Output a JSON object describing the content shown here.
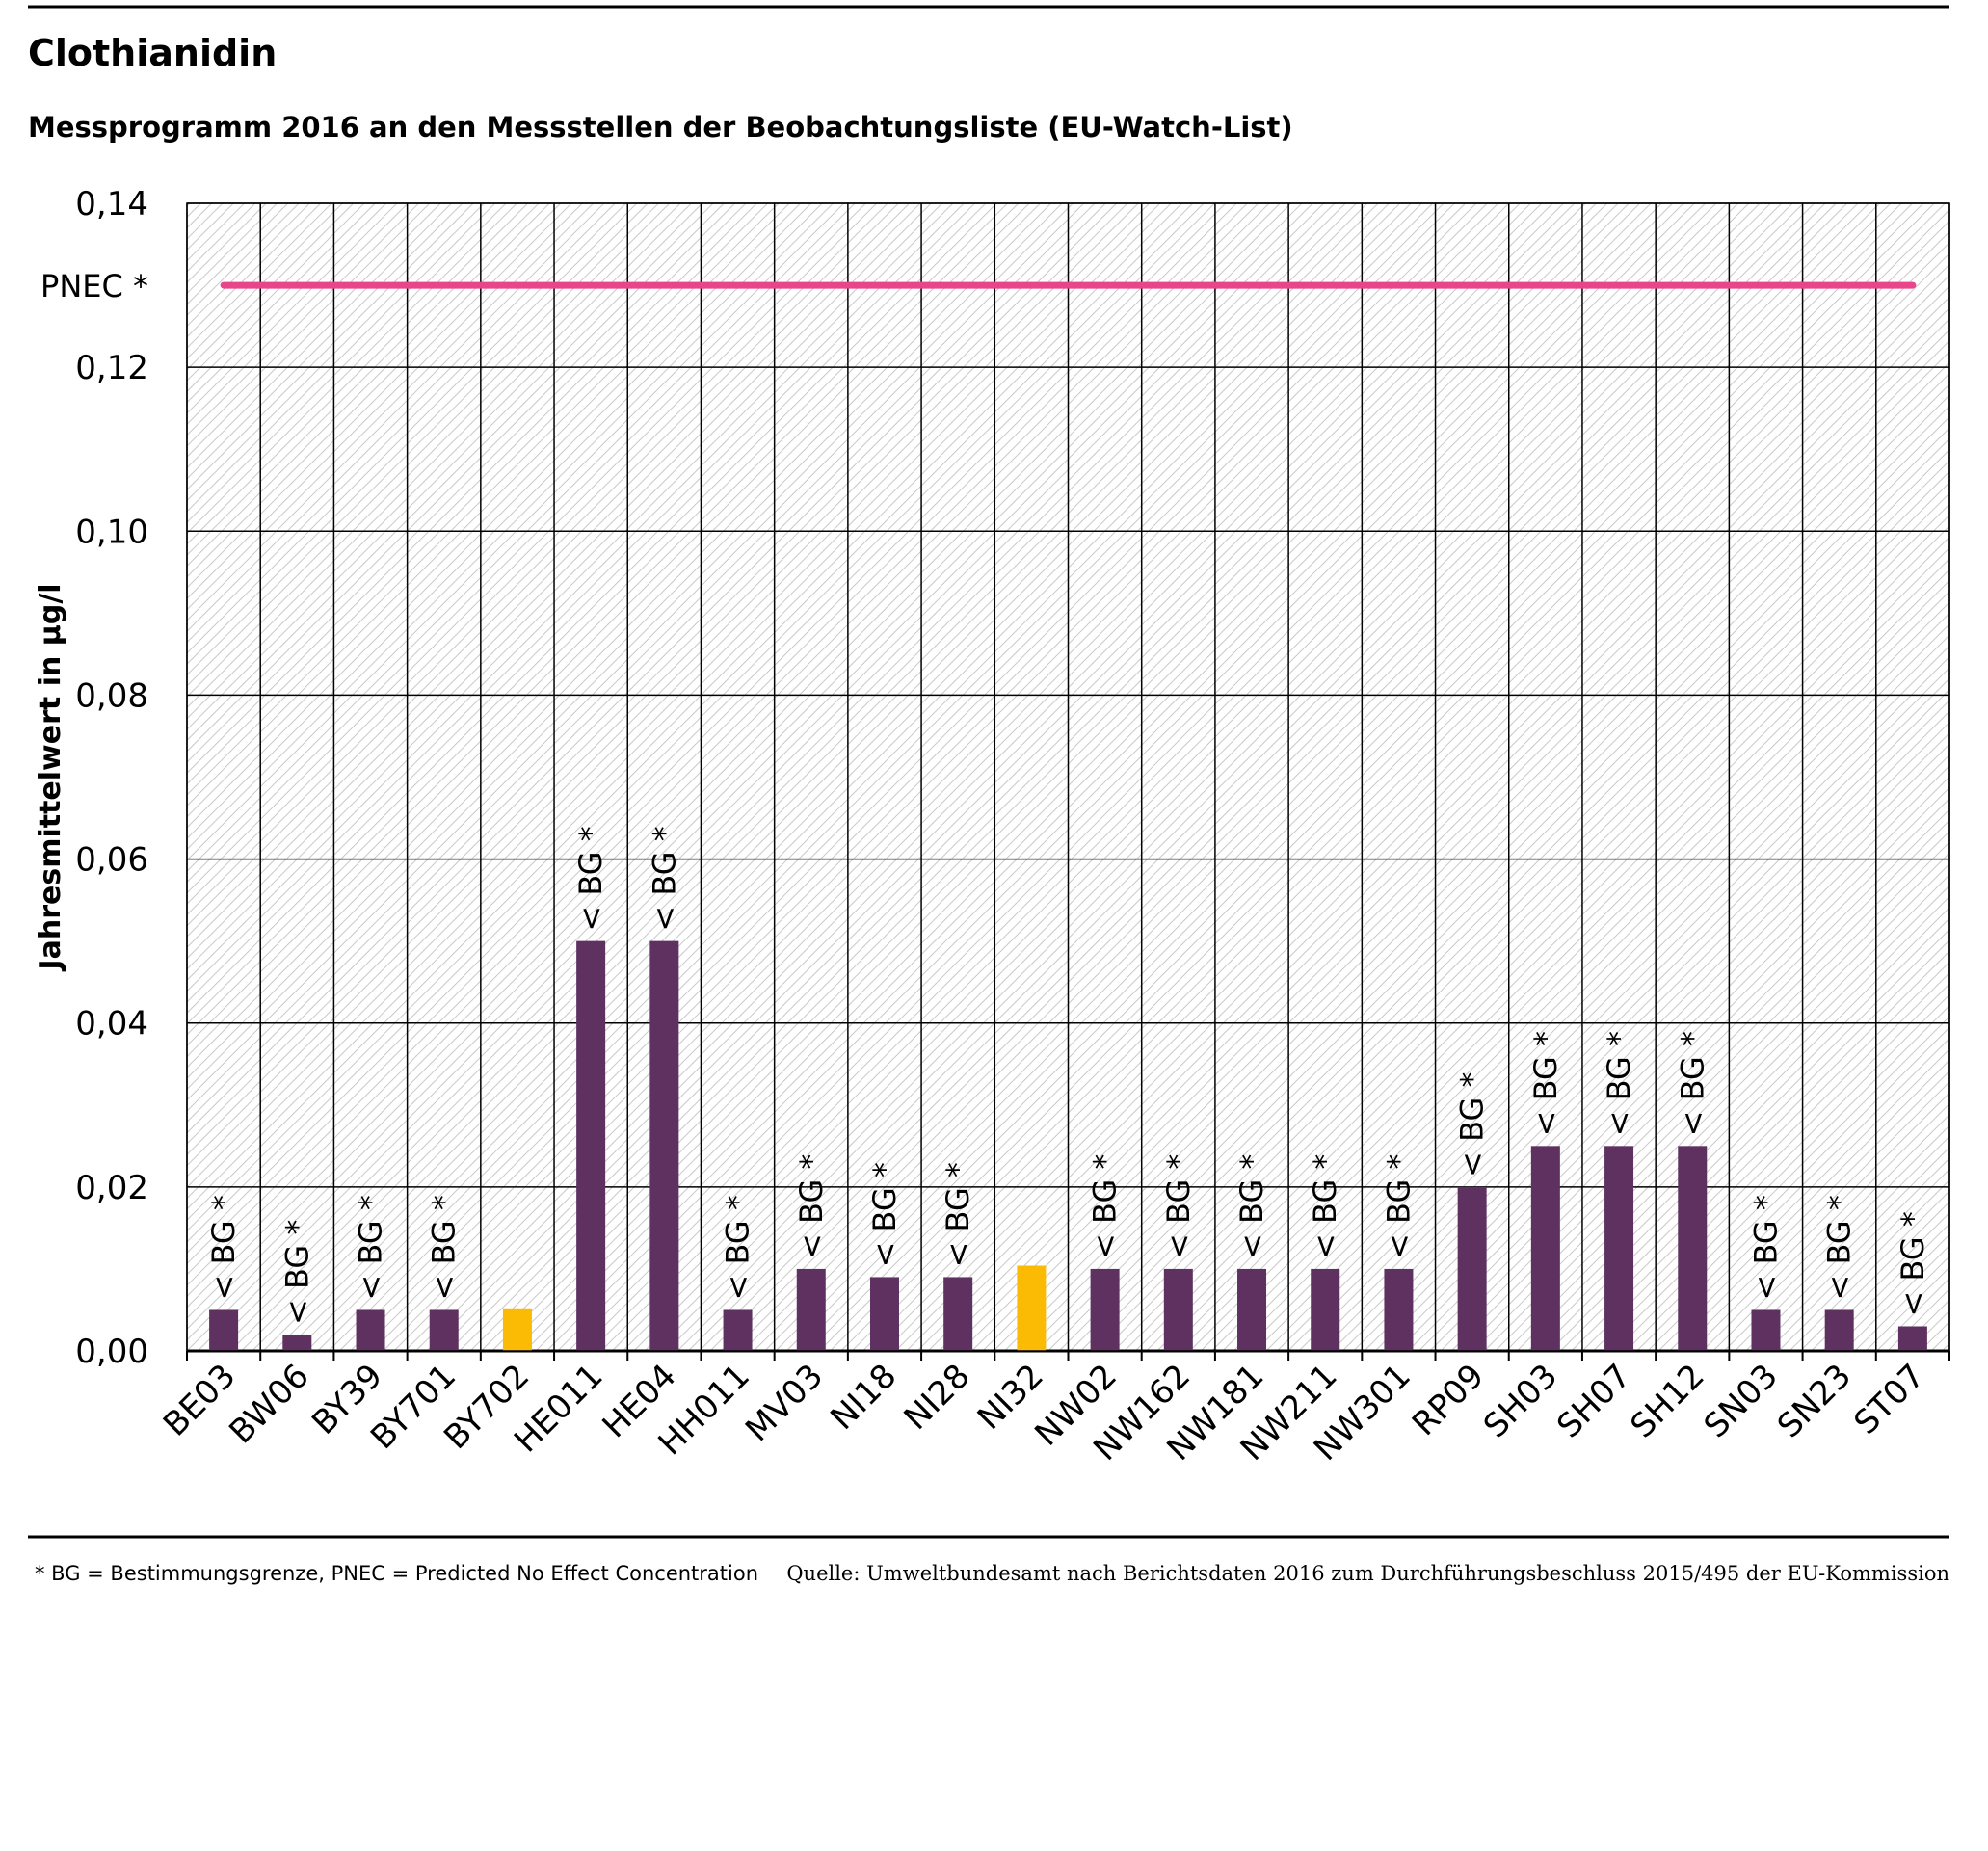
{
  "chart_data": {
    "type": "bar",
    "title": "Clothianidin",
    "subtitle": "Messprogramm 2016 an den Messstellen der Beobachtungsliste (EU-Watch-List)",
    "y_label": "Jahresmittelwert in µg/l",
    "categories": [
      "BE03",
      "BW06",
      "BY39",
      "BY701",
      "BY702",
      "HE011",
      "HE04",
      "HH011",
      "MV03",
      "NI18",
      "NI28",
      "NI32",
      "NW02",
      "NW162",
      "NW181",
      "NW211",
      "NW301",
      "RP09",
      "SH03",
      "SH07",
      "SH12",
      "SN03",
      "SN23",
      "ST07"
    ],
    "values": [
      0.005,
      0.002,
      0.005,
      0.005,
      0.0052,
      0.05,
      0.05,
      0.005,
      0.01,
      0.009,
      0.009,
      0.0104,
      0.01,
      0.01,
      0.01,
      0.01,
      0.01,
      0.02,
      0.025,
      0.025,
      0.025,
      0.005,
      0.005,
      0.003
    ],
    "value_labels": [
      "< BG *",
      "< BG *",
      "< BG *",
      "< BG *",
      null,
      "< BG *",
      "< BG *",
      "< BG *",
      "< BG *",
      "< BG *",
      "< BG *",
      null,
      "< BG *",
      "< BG *",
      "< BG *",
      "< BG *",
      "< BG *",
      "< BG *",
      "< BG *",
      "< BG *",
      "< BG *",
      "< BG *",
      "< BG *",
      "< BG *"
    ],
    "colors": [
      "#5e3160",
      "#5e3160",
      "#5e3160",
      "#5e3160",
      "#fbbb05",
      "#5e3160",
      "#5e3160",
      "#5e3160",
      "#5e3160",
      "#5e3160",
      "#5e3160",
      "#fbbb05",
      "#5e3160",
      "#5e3160",
      "#5e3160",
      "#5e3160",
      "#5e3160",
      "#5e3160",
      "#5e3160",
      "#5e3160",
      "#5e3160",
      "#5e3160",
      "#5e3160",
      "#5e3160"
    ],
    "ylim": [
      0,
      0.14
    ],
    "yticks": [
      {
        "value": 0,
        "label": "0,00"
      },
      {
        "value": 0.02,
        "label": "0,02"
      },
      {
        "value": 0.04,
        "label": "0,04"
      },
      {
        "value": 0.06,
        "label": "0,06"
      },
      {
        "value": 0.08,
        "label": "0,08"
      },
      {
        "value": 0.1,
        "label": "0,10"
      },
      {
        "value": 0.12,
        "label": "0,12"
      },
      {
        "value": 0.14,
        "label": "0,14"
      }
    ],
    "grid": true,
    "reference_line": {
      "value": 0.13,
      "label": "PNEC *",
      "color": "#e8458b"
    },
    "footnote": "* BG = Bestimmungsgrenze, PNEC = Predicted No Effect Concentration",
    "source": "Quelle: Umweltbundesamt nach Berichtsdaten 2016 zum Durchführungsbeschluss 2015/495 der EU-Kommission"
  }
}
